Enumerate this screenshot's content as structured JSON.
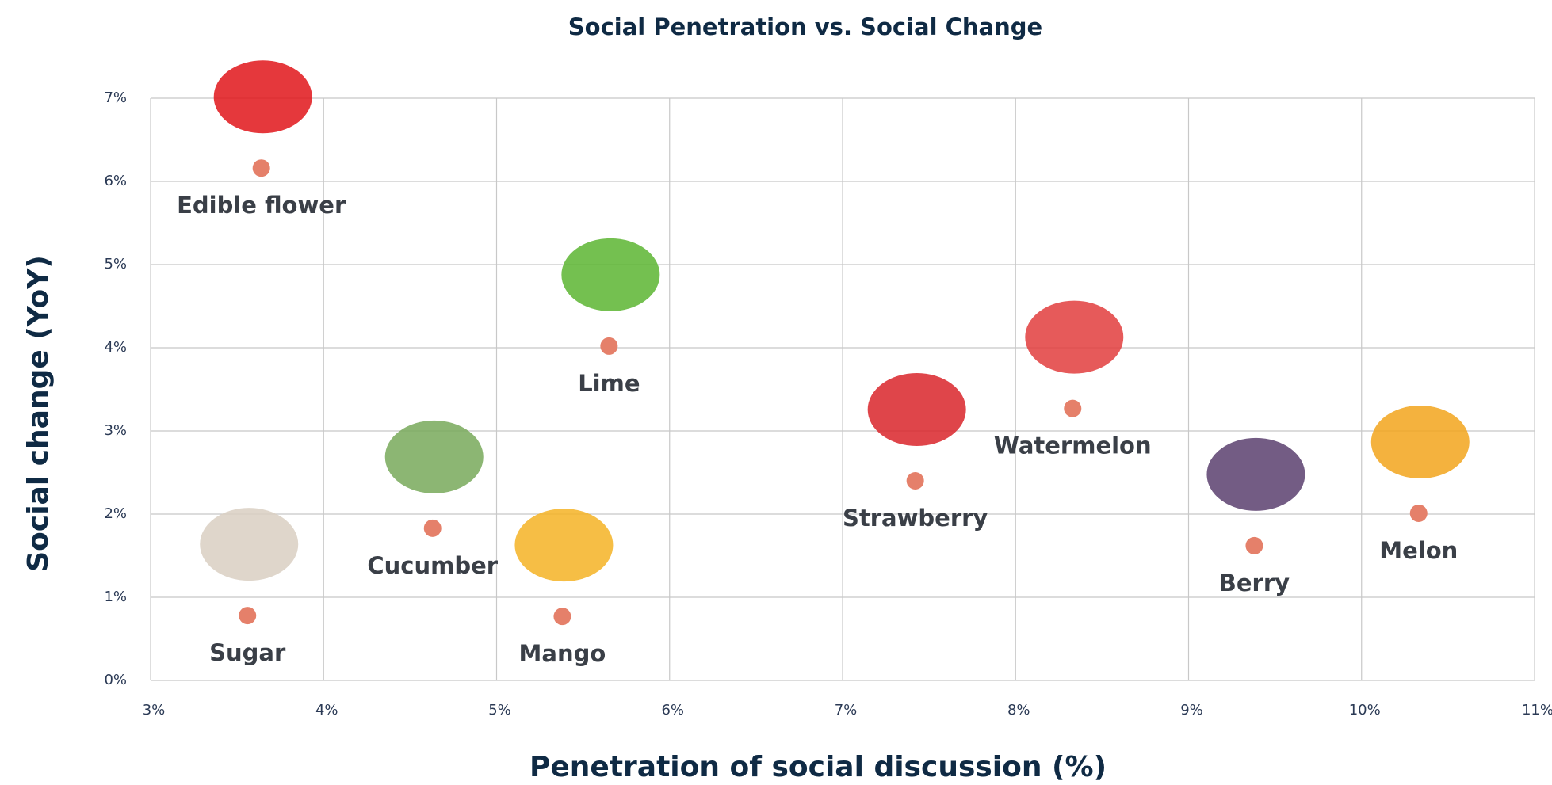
{
  "chart_data": {
    "type": "scatter",
    "title": "Social Penetration vs. Social Change",
    "x_label": "Penetration of social discussion (%)",
    "y_label": "Social change (YoY)",
    "labels": [
      "Edible flower",
      "Lime",
      "Watermelon",
      "Strawberry",
      "Melon",
      "Berry",
      "Cucumber",
      "Sugar",
      "Mango"
    ],
    "x": [
      3.64,
      5.65,
      8.33,
      7.42,
      10.33,
      9.38,
      4.63,
      3.56,
      5.38
    ],
    "y": [
      6.16,
      4.02,
      3.27,
      2.4,
      2.01,
      1.62,
      1.83,
      0.78,
      0.77
    ],
    "color": "#e5806a",
    "xlim": [
      3,
      11
    ],
    "ylim": [
      0,
      7
    ],
    "xticks": [
      {
        "value": 3,
        "label": "3%"
      },
      {
        "value": 4,
        "label": "4%"
      },
      {
        "value": 5,
        "label": "5%"
      },
      {
        "value": 6,
        "label": "6%"
      },
      {
        "value": 7,
        "label": "7%"
      },
      {
        "value": 8,
        "label": "8%"
      },
      {
        "value": 9,
        "label": "9%"
      },
      {
        "value": 10,
        "label": "10%"
      },
      {
        "value": 11,
        "label": "11%"
      }
    ],
    "yticks": [
      {
        "value": 0,
        "label": "0%"
      },
      {
        "value": 1,
        "label": "1%"
      },
      {
        "value": 2,
        "label": "2%"
      },
      {
        "value": 3,
        "label": "3%"
      },
      {
        "value": 4,
        "label": "4%"
      },
      {
        "value": 5,
        "label": "5%"
      },
      {
        "value": 6,
        "label": "6%"
      },
      {
        "value": 7,
        "label": "7%"
      }
    ],
    "grid": true
  }
}
